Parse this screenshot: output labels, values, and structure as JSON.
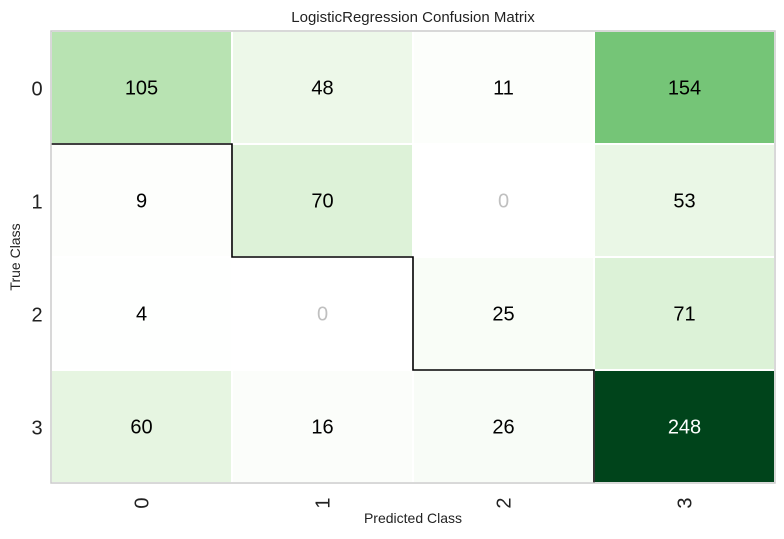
{
  "chart_data": {
    "type": "heatmap",
    "title": "LogisticRegression Confusion Matrix",
    "xlabel": "Predicted Class",
    "ylabel": "True Class",
    "x_categories": [
      "0",
      "1",
      "2",
      "3"
    ],
    "y_categories": [
      "0",
      "1",
      "2",
      "3"
    ],
    "values": [
      [
        105,
        48,
        11,
        154
      ],
      [
        9,
        70,
        0,
        53
      ],
      [
        4,
        0,
        25,
        71
      ],
      [
        60,
        16,
        26,
        248
      ]
    ],
    "colormap": "Greens",
    "zero_text_color": "#c0c0c0",
    "low_text_color": "#000000",
    "high_text_color": "#ffffff",
    "diagonal_outline": true
  }
}
